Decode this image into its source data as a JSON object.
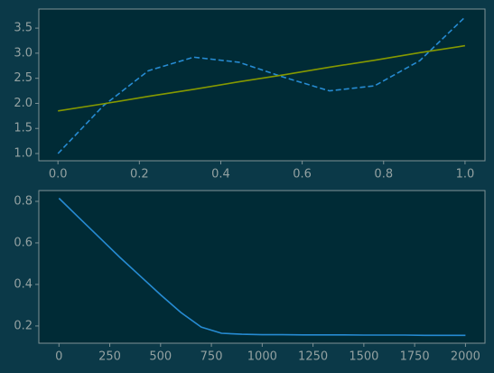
{
  "chart_data": [
    {
      "type": "line",
      "x": [
        0,
        0.1111,
        0.2222,
        0.3333,
        0.4444,
        0.5556,
        0.6667,
        0.7778,
        0.8889,
        1
      ],
      "series": [
        {
          "color": "#268bd2",
          "linestyle": "dashed",
          "values": [
            1.0,
            1.95,
            2.65,
            2.92,
            2.82,
            2.52,
            2.25,
            2.35,
            2.85,
            3.72
          ]
        },
        {
          "color": "#859900",
          "linestyle": "solid",
          "values": [
            1.85,
            1.99,
            2.14,
            2.28,
            2.43,
            2.57,
            2.72,
            2.86,
            3.01,
            3.15
          ]
        }
      ],
      "xlim": [
        -0.047,
        1.049
      ],
      "ylim": [
        0.856,
        3.88
      ],
      "xticks": [
        {
          "value": 0,
          "label": "0.0"
        },
        {
          "value": 0.2,
          "label": "0.2"
        },
        {
          "value": 0.4,
          "label": "0.4"
        },
        {
          "value": 0.6,
          "label": "0.6"
        },
        {
          "value": 0.8,
          "label": "0.8"
        },
        {
          "value": 1,
          "label": "1.0"
        }
      ],
      "yticks": [
        {
          "value": 1,
          "label": "1.0"
        },
        {
          "value": 1.5,
          "label": "1.5"
        },
        {
          "value": 2,
          "label": "2.0"
        },
        {
          "value": 2.5,
          "label": "2.5"
        },
        {
          "value": 3,
          "label": "3.0"
        },
        {
          "value": 3.5,
          "label": "3.5"
        }
      ]
    },
    {
      "type": "line",
      "x": [
        0,
        100,
        200,
        300,
        400,
        500,
        600,
        700,
        800,
        900,
        1000,
        1100,
        1200,
        1300,
        1400,
        1500,
        1600,
        1700,
        1800,
        1900,
        2000
      ],
      "series": [
        {
          "color": "#268bd2",
          "linestyle": "solid",
          "values": [
            0.815,
            0.72,
            0.625,
            0.53,
            0.44,
            0.35,
            0.265,
            0.195,
            0.165,
            0.16,
            0.158,
            0.158,
            0.157,
            0.157,
            0.157,
            0.156,
            0.156,
            0.156,
            0.155,
            0.155,
            0.155
          ]
        }
      ],
      "xlim": [
        -99,
        2096
      ],
      "ylim": [
        0.117,
        0.852
      ],
      "xticks": [
        0,
        250,
        500,
        750,
        1000,
        1250,
        1500,
        1750,
        2000
      ],
      "yticks": [
        0.2,
        0.4,
        0.6,
        0.8
      ]
    }
  ]
}
